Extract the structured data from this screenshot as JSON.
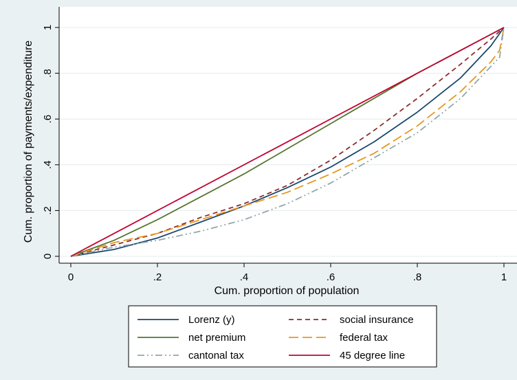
{
  "chart_data": {
    "type": "line",
    "xlabel": "Cum. proportion of population",
    "ylabel": "Cum. proportion of payments/expenditure",
    "xlim": [
      0,
      1
    ],
    "ylim": [
      0,
      1
    ],
    "xticks": [
      "0",
      ".2",
      ".4",
      ".6",
      ".8",
      "1"
    ],
    "yticks": [
      "0",
      ".2",
      ".4",
      ".6",
      ".8",
      "1"
    ],
    "grid": true,
    "legend_position": "bottom",
    "colors": {
      "lorenz": "#1a476f",
      "net_premium": "#55752f",
      "cantonal_tax": "#90a8a8",
      "social_insurance": "#8c2b2b",
      "federal_tax": "#e8961e",
      "degree45": "#c10534"
    },
    "series": [
      {
        "name": "Lorenz (y)",
        "color": "#1a476f",
        "dash": "solid",
        "x": [
          0,
          0.1,
          0.2,
          0.3,
          0.4,
          0.5,
          0.6,
          0.7,
          0.8,
          0.9,
          0.97,
          1
        ],
        "y": [
          0,
          0.03,
          0.08,
          0.15,
          0.22,
          0.3,
          0.39,
          0.5,
          0.63,
          0.78,
          0.92,
          1
        ]
      },
      {
        "name": "social insurance",
        "color": "#8c2b2b",
        "dash": "7,5",
        "x": [
          0,
          0.1,
          0.2,
          0.3,
          0.4,
          0.5,
          0.6,
          0.7,
          0.8,
          0.9,
          0.97,
          1
        ],
        "y": [
          0,
          0.05,
          0.1,
          0.17,
          0.23,
          0.31,
          0.42,
          0.55,
          0.69,
          0.84,
          0.95,
          1
        ]
      },
      {
        "name": "net premium",
        "color": "#55752f",
        "dash": "solid",
        "x": [
          0,
          0.1,
          0.2,
          0.3,
          0.4,
          0.5,
          0.6,
          0.7,
          0.8,
          0.9,
          0.97,
          1
        ],
        "y": [
          0,
          0.07,
          0.16,
          0.26,
          0.36,
          0.47,
          0.58,
          0.69,
          0.8,
          0.9,
          0.97,
          1
        ]
      },
      {
        "name": "federal tax",
        "color": "#e8961e",
        "dash": "14,6",
        "x": [
          0,
          0.1,
          0.2,
          0.3,
          0.4,
          0.5,
          0.6,
          0.7,
          0.8,
          0.9,
          0.97,
          0.99,
          1
        ],
        "y": [
          0,
          0.06,
          0.1,
          0.16,
          0.22,
          0.28,
          0.36,
          0.45,
          0.57,
          0.72,
          0.85,
          0.9,
          1
        ]
      },
      {
        "name": "cantonal tax",
        "color": "#90a8a8",
        "dash": "10,4,2,4,2,4",
        "x": [
          0,
          0.1,
          0.2,
          0.3,
          0.4,
          0.5,
          0.6,
          0.7,
          0.8,
          0.9,
          0.97,
          0.99,
          1
        ],
        "y": [
          0,
          0.04,
          0.07,
          0.11,
          0.16,
          0.23,
          0.32,
          0.43,
          0.54,
          0.69,
          0.83,
          0.87,
          1
        ]
      },
      {
        "name": "45 degree line",
        "color": "#c10534",
        "dash": "solid",
        "x": [
          0,
          1
        ],
        "y": [
          0,
          1
        ]
      }
    ],
    "legend": [
      [
        {
          "name": "Lorenz (y)",
          "color": "#1a476f",
          "dash": "solid"
        },
        {
          "name": "social insurance",
          "color": "#8c2b2b",
          "dash": "7,5"
        }
      ],
      [
        {
          "name": "net premium",
          "color": "#55752f",
          "dash": "solid"
        },
        {
          "name": "federal tax",
          "color": "#e8961e",
          "dash": "14,6"
        }
      ],
      [
        {
          "name": "cantonal tax",
          "color": "#90a8a8",
          "dash": "10,4,2,4,2,4"
        },
        {
          "name": "45 degree line",
          "color": "#c10534",
          "dash": "solid"
        }
      ]
    ]
  }
}
